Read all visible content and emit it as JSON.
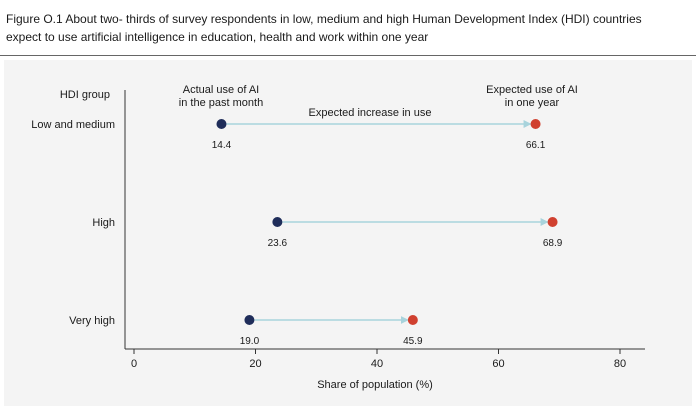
{
  "figure": {
    "caption_line1": "Figure O.1  About two-    thirds of survey respondents in low, medium and high Human Development Index (HDI) countries",
    "caption_line2": "expect to use artificial intelligence in education, health and work within one year"
  },
  "colors": {
    "actual": "#1f2d5a",
    "expected": "#d0402f",
    "arrow": "#a8d3dc",
    "axis": "#333333",
    "panel": "#f4f4f4"
  },
  "chart_data": {
    "type": "dumbbell",
    "title": "About two-thirds of survey respondents in low, medium and high Human Development Index (HDI) countries expect to use artificial intelligence in education, health and work within one year",
    "ylabel": "HDI group",
    "xlabel": "Share of population (%)",
    "xlim": [
      0,
      80
    ],
    "xticks": [
      "0",
      "20",
      "40",
      "60",
      "80"
    ],
    "xtick_values": [
      0,
      20,
      40,
      60,
      80
    ],
    "categories": [
      "Low and medium",
      "High",
      "Very high"
    ],
    "series": [
      {
        "name": "Actual use of AI in the past month",
        "values": [
          14.4,
          23.6,
          19.0
        ],
        "labels": [
          "14.4",
          "23.6",
          "19.0"
        ]
      },
      {
        "name": "Expected use of AI in one year",
        "values": [
          66.1,
          68.9,
          45.9
        ],
        "labels": [
          "66.1",
          "68.9",
          "45.9"
        ]
      }
    ],
    "annotations": {
      "actual_line1": "Actual use of AI",
      "actual_line2": "in the past month",
      "expected_line1": "Expected use of AI",
      "expected_line2": "in one year",
      "increase": "Expected increase in use"
    }
  }
}
